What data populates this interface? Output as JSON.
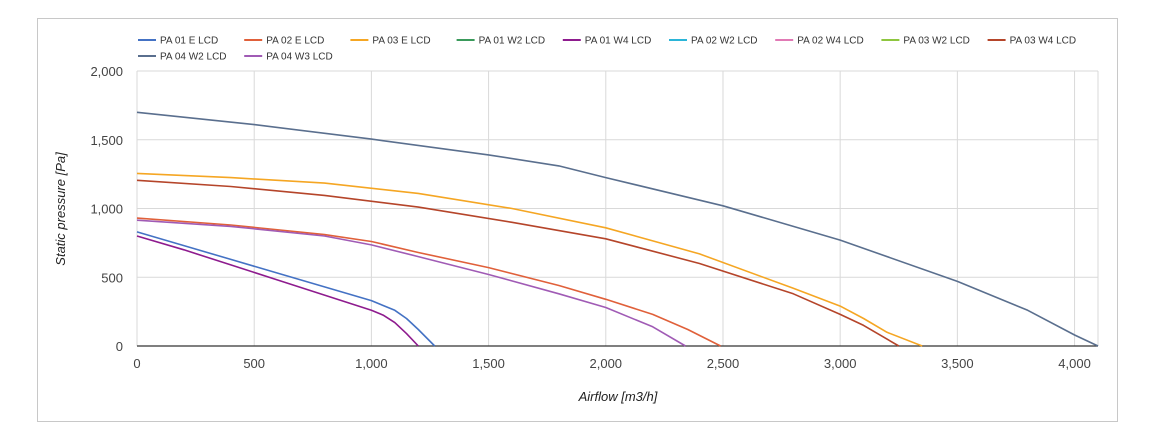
{
  "chart_data": {
    "type": "line",
    "title": "",
    "xlabel": "Airflow [m3/h]",
    "ylabel": "Static pressure [Pa]",
    "xlim": [
      0,
      4100
    ],
    "ylim": [
      0,
      2000
    ],
    "x_ticks": [
      0,
      500,
      1000,
      1500,
      2000,
      2500,
      3000,
      3500,
      4000
    ],
    "x_tick_labels": [
      "0",
      "500",
      "1,000",
      "1,500",
      "2,000",
      "2,500",
      "3,000",
      "3,500",
      "4,000"
    ],
    "y_ticks": [
      0,
      500,
      1000,
      1500,
      2000
    ],
    "y_tick_labels": [
      "0",
      "500",
      "1,000",
      "1,500",
      "2,000"
    ],
    "grid": true,
    "legend_position": "top",
    "series": [
      {
        "name": "PA 01 E LCD",
        "color": "#4472c4",
        "points": [
          [
            0,
            830
          ],
          [
            200,
            730
          ],
          [
            400,
            630
          ],
          [
            600,
            530
          ],
          [
            800,
            430
          ],
          [
            1000,
            330
          ],
          [
            1100,
            260
          ],
          [
            1150,
            200
          ],
          [
            1200,
            120
          ],
          [
            1270,
            0
          ]
        ]
      },
      {
        "name": "PA 02 E LCD",
        "color": "#e0603a",
        "points": [
          [
            0,
            930
          ],
          [
            400,
            880
          ],
          [
            800,
            810
          ],
          [
            1000,
            760
          ],
          [
            1200,
            680
          ],
          [
            1500,
            570
          ],
          [
            1800,
            440
          ],
          [
            2000,
            340
          ],
          [
            2200,
            230
          ],
          [
            2350,
            120
          ],
          [
            2490,
            0
          ]
        ]
      },
      {
        "name": "PA 03 E LCD",
        "color": "#f5a623",
        "points": [
          [
            0,
            1255
          ],
          [
            400,
            1225
          ],
          [
            800,
            1185
          ],
          [
            1200,
            1110
          ],
          [
            1600,
            1000
          ],
          [
            2000,
            860
          ],
          [
            2400,
            670
          ],
          [
            2800,
            420
          ],
          [
            3000,
            290
          ],
          [
            3100,
            200
          ],
          [
            3200,
            100
          ],
          [
            3350,
            0
          ]
        ]
      },
      {
        "name": "PA 01 W2 LCD",
        "color": "#3a9a5b",
        "points": []
      },
      {
        "name": "PA 01 W4 LCD",
        "color": "#8e1b8e",
        "points": [
          [
            0,
            800
          ],
          [
            200,
            700
          ],
          [
            400,
            590
          ],
          [
            600,
            480
          ],
          [
            800,
            370
          ],
          [
            1000,
            260
          ],
          [
            1050,
            225
          ],
          [
            1100,
            170
          ],
          [
            1150,
            90
          ],
          [
            1200,
            0
          ]
        ]
      },
      {
        "name": "PA 02 W2 LCD",
        "color": "#2bb5d8",
        "points": []
      },
      {
        "name": "PA 02 W4 LCD",
        "color": "#e17ab5",
        "points": []
      },
      {
        "name": "PA 03 W2 LCD",
        "color": "#8ec63f",
        "points": []
      },
      {
        "name": "PA 03 W4 LCD",
        "color": "#b5452a",
        "points": [
          [
            0,
            1205
          ],
          [
            400,
            1160
          ],
          [
            800,
            1095
          ],
          [
            1200,
            1010
          ],
          [
            1600,
            900
          ],
          [
            2000,
            780
          ],
          [
            2400,
            600
          ],
          [
            2800,
            380
          ],
          [
            3000,
            230
          ],
          [
            3100,
            150
          ],
          [
            3250,
            0
          ]
        ]
      },
      {
        "name": "PA 04 W2 LCD",
        "color": "#5a6f8e",
        "points": [
          [
            0,
            1700
          ],
          [
            500,
            1610
          ],
          [
            1000,
            1505
          ],
          [
            1500,
            1390
          ],
          [
            1800,
            1310
          ],
          [
            2000,
            1225
          ],
          [
            2500,
            1020
          ],
          [
            3000,
            770
          ],
          [
            3500,
            470
          ],
          [
            3800,
            260
          ],
          [
            4000,
            80
          ],
          [
            4100,
            0
          ]
        ]
      },
      {
        "name": "PA 04 W3 LCD",
        "color": "#a05bb5",
        "points": [
          [
            0,
            915
          ],
          [
            400,
            870
          ],
          [
            800,
            800
          ],
          [
            1000,
            735
          ],
          [
            1200,
            650
          ],
          [
            1500,
            520
          ],
          [
            1800,
            380
          ],
          [
            2000,
            280
          ],
          [
            2200,
            140
          ],
          [
            2340,
            0
          ]
        ]
      }
    ]
  }
}
